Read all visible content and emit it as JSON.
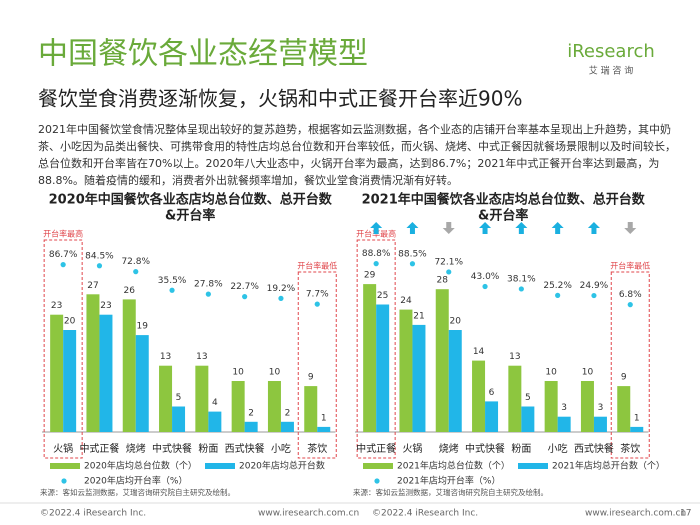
{
  "header": {
    "title": "中国餐饮各业态经营模型",
    "subtitle": "餐饮堂食消费逐渐恢复，火锅和中式正餐开台率近90%",
    "logo": "iResearch",
    "logo_sub": "艾 瑞 咨 询"
  },
  "summary": "2021年中国餐饮堂食情况整体呈现出较好的复苏趋势，根据客如云监测数据，各个业态的店铺开台率基本呈现出上升趋势，其中奶茶、小吃因为品类出餐快、可携带食用的特性店均总台位数和开台率较低，而火锅、烧烤、中式正餐因就餐场景限制以及时间较长，总台位数和开台率皆在70%以上。2020年八大业态中，火锅开台率为最高，达到86.7%；2021年中式正餐开台率达到最高，为88.8%。随着疫情的缓和，消费者外出就餐频率增加，餐饮业堂食消费情况渐有好转。",
  "chart_data": [
    {
      "type": "bar",
      "title": "2020年中国餐饮各业态店均总台位数、总开台数",
      "title_line2": "&开台率",
      "categories": [
        "火锅",
        "中式正餐",
        "烧烤",
        "中式快餐",
        "粉面",
        "西式快餐",
        "小吃",
        "茶饮"
      ],
      "series": [
        {
          "name": "2020年店均总台位数（个）",
          "color": "#8dc63f",
          "values": [
            23,
            27,
            26,
            13,
            13,
            10,
            10,
            9
          ]
        },
        {
          "name": "2020年店均总开台数",
          "color": "#21b6e8",
          "values": [
            20,
            23,
            19,
            5,
            4,
            2,
            2,
            1
          ]
        },
        {
          "name": "2020年店均开台率（%）",
          "type": "scatter",
          "color": "#2ec3e6",
          "values": [
            86.7,
            84.5,
            72.8,
            35.5,
            27.8,
            22.7,
            19.2,
            7.7
          ],
          "value_labels": [
            "86.7%",
            "84.5%",
            "72.8%",
            "35.5%",
            "27.8%",
            "22.7%",
            "19.2%",
            "7.7%"
          ]
        }
      ],
      "annotations": [
        "开台率最高",
        "开台率最低"
      ],
      "source": "来源：客如云监测数据，艾瑞咨询研究院自主研究及绘制。"
    },
    {
      "type": "bar",
      "title": "2021年中国餐饮各业态店均总台位数、总开台数",
      "title_line2": "&开台率",
      "categories": [
        "中式正餐",
        "火锅",
        "烧烤",
        "中式快餐",
        "粉面",
        "小吃",
        "西式快餐",
        "茶饮"
      ],
      "series": [
        {
          "name": "2021年店均总台位数（个）",
          "color": "#8dc63f",
          "values": [
            29,
            24,
            28,
            14,
            13,
            10,
            10,
            9
          ]
        },
        {
          "name": "2021年店均总开台数（个）",
          "color": "#21b6e8",
          "values": [
            25,
            21,
            20,
            6,
            5,
            3,
            3,
            1
          ]
        },
        {
          "name": "2021年店均开台率（%）",
          "type": "scatter",
          "color": "#2ec3e6",
          "values": [
            88.8,
            88.5,
            72.1,
            43.0,
            38.1,
            25.2,
            24.9,
            6.8
          ],
          "value_labels": [
            "88.8%",
            "88.5%",
            "72.1%",
            "43.0%",
            "38.1%",
            "25.2%",
            "24.9%",
            "6.8%"
          ]
        }
      ],
      "annotations": [
        "开台率最高",
        "开台率最低"
      ],
      "source": "来源：客如云监测数据，艾瑞咨询研究院自主研究及绘制。"
    }
  ],
  "footer": {
    "copyright_left": "©2022.4 iResearch Inc.",
    "url_left": "www.iresearch.com.cn",
    "copyright_right": "©2022.4 iResearch Inc.",
    "url_right": "www.iresearch.com.cn",
    "page": 17
  }
}
